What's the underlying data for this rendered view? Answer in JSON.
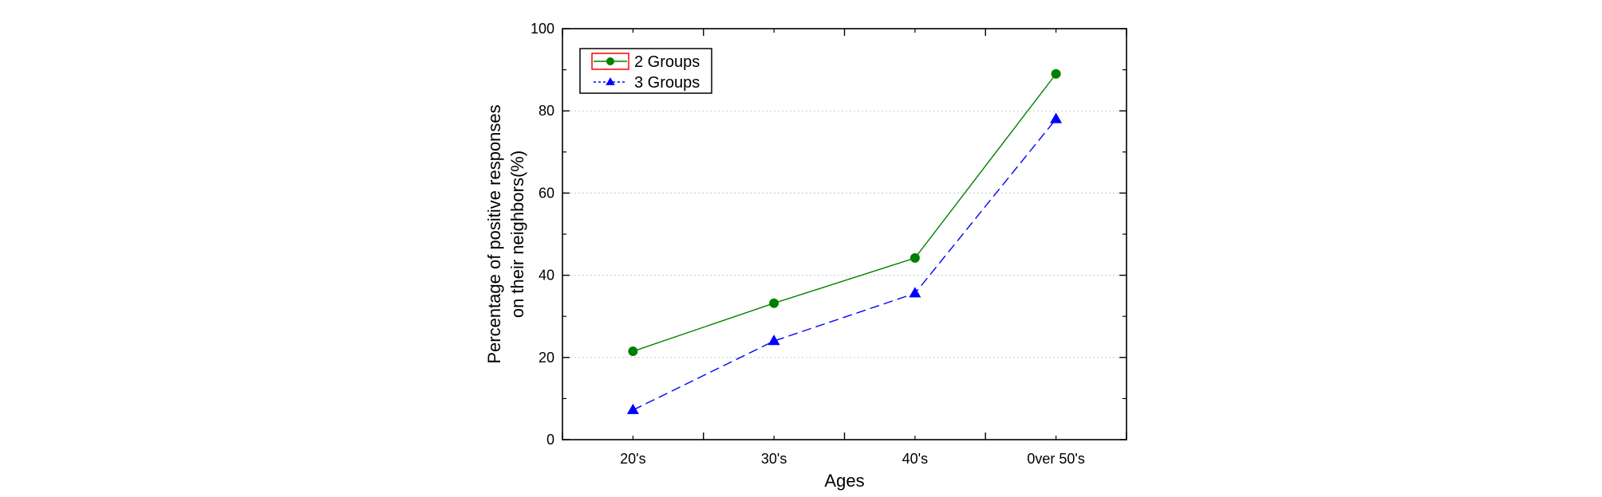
{
  "chart_data": {
    "type": "line",
    "categories": [
      "20's",
      "30's",
      "40's",
      "0ver 50's"
    ],
    "series": [
      {
        "name": "2 Groups",
        "values": [
          21.5,
          33.2,
          44.2,
          89.0
        ],
        "color": "#008000",
        "marker": "circle",
        "line_style": "solid"
      },
      {
        "name": "3 Groups",
        "values": [
          7.2,
          24.0,
          35.6,
          78.0
        ],
        "color": "#0000ff",
        "marker": "triangle",
        "line_style": "dashed"
      }
    ],
    "xlabel": "Ages",
    "ylabel_lines": [
      "Percentage of positive responses",
      "on their neighbors(%)"
    ],
    "ylim": [
      0,
      100
    ],
    "yticks": [
      0,
      20,
      40,
      60,
      80,
      100
    ],
    "grid": true,
    "legend_position": "top-left",
    "legend_box_color": "#ff0000"
  }
}
